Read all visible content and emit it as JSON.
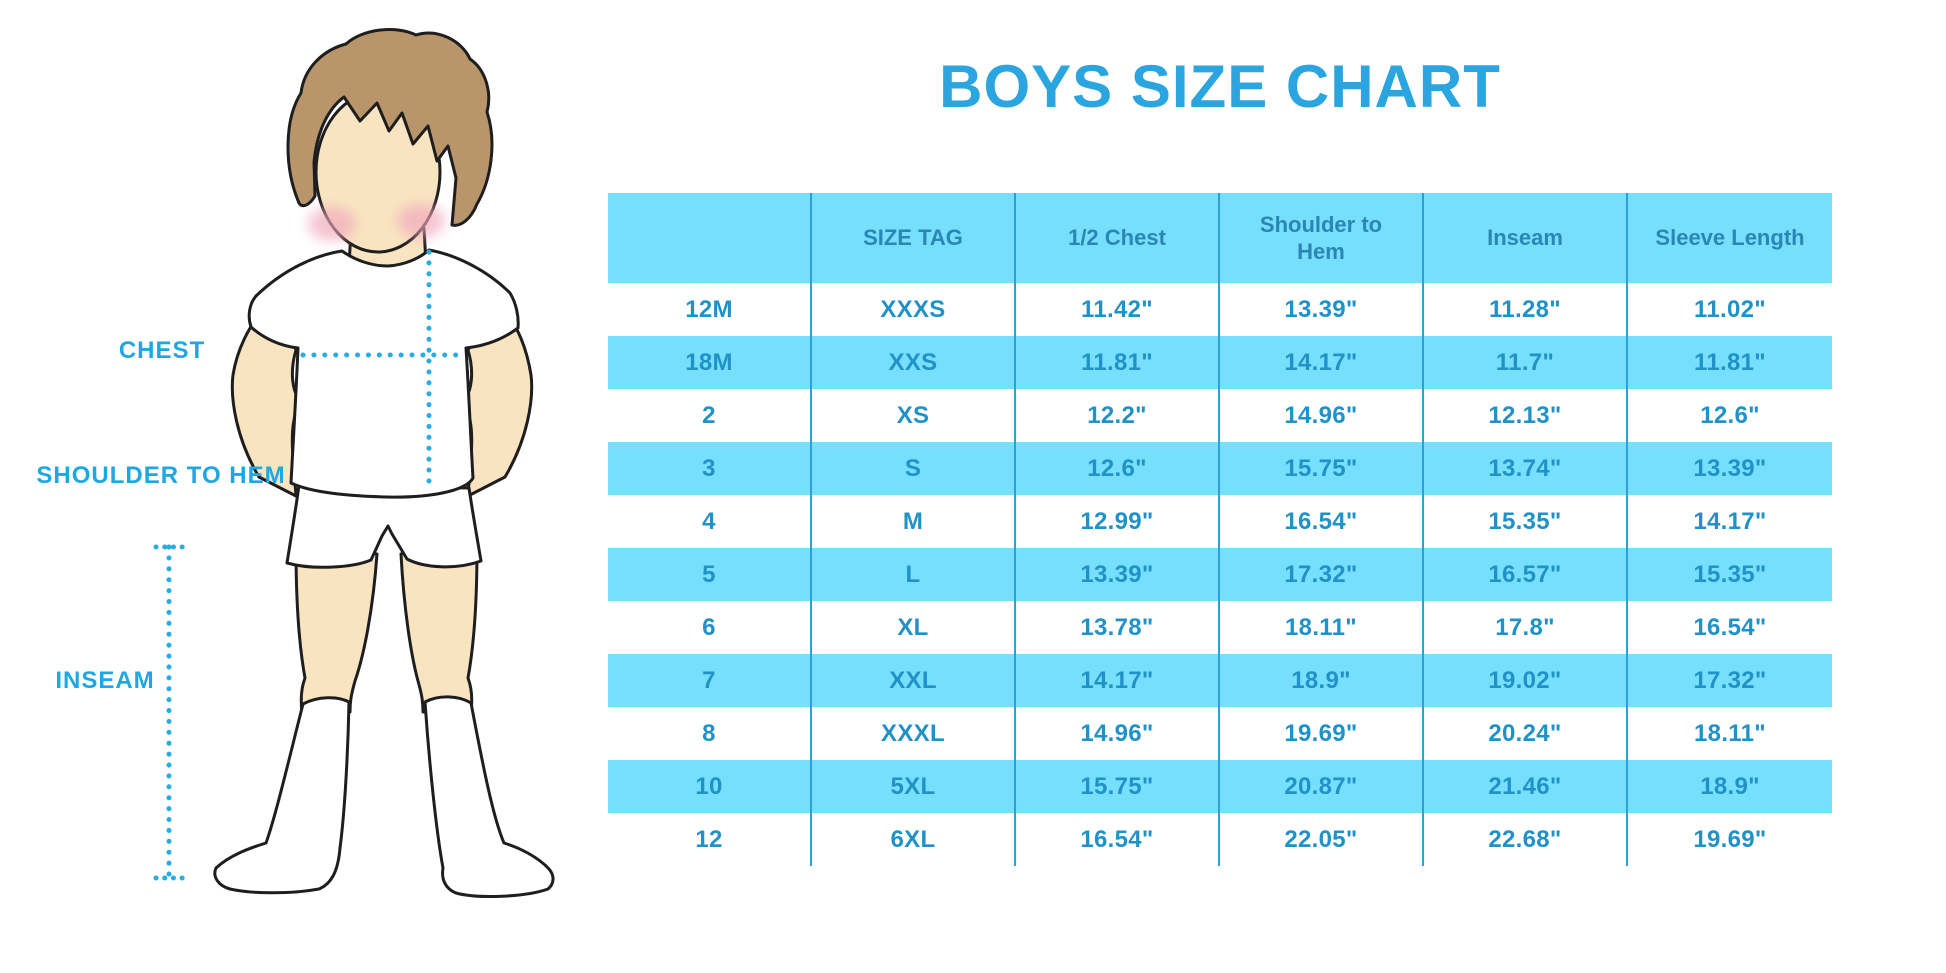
{
  "title": "BOYS SIZE CHART",
  "diagram": {
    "chest_label": "CHEST",
    "shoulder_to_hem_label": "SHOULDER TO HEM",
    "inseam_label": "INSEAM",
    "figure": "boy illustration in white t-shirt, white shorts and white knee socks with dotted measurement guides"
  },
  "colors": {
    "title_blue": "#2AA5DF",
    "label_blue": "#1FA7E2",
    "dot_blue": "#29ABE3",
    "row_blue": "#76DFFB",
    "header_text": "#2A86B6",
    "cell_text": "#2092C8",
    "separator": "#2AA2D6",
    "skin": "#F9E4C1",
    "hair": "#B8956A",
    "outline": "#1E1E1E",
    "cheek": "#F0A6BC"
  },
  "chart_data": {
    "type": "table",
    "title": "BOYS SIZE CHART",
    "columns": [
      "",
      "SIZE TAG",
      "1/2 Chest",
      "Shoulder to Hem",
      "Inseam",
      "Sleeve Length"
    ],
    "rows": [
      [
        "12M",
        "XXXS",
        "11.42\"",
        "13.39\"",
        "11.28\"",
        "11.02\""
      ],
      [
        "18M",
        "XXS",
        "11.81\"",
        "14.17\"",
        "11.7\"",
        "11.81\""
      ],
      [
        "2",
        "XS",
        "12.2\"",
        "14.96\"",
        "12.13\"",
        "12.6\""
      ],
      [
        "3",
        "S",
        "12.6\"",
        "15.75\"",
        "13.74\"",
        "13.39\""
      ],
      [
        "4",
        "M",
        "12.99\"",
        "16.54\"",
        "15.35\"",
        "14.17\""
      ],
      [
        "5",
        "L",
        "13.39\"",
        "17.32\"",
        "16.57\"",
        "15.35\""
      ],
      [
        "6",
        "XL",
        "13.78\"",
        "18.11\"",
        "17.8\"",
        "16.54\""
      ],
      [
        "7",
        "XXL",
        "14.17\"",
        "18.9\"",
        "19.02\"",
        "17.32\""
      ],
      [
        "8",
        "XXXL",
        "14.96\"",
        "19.69\"",
        "20.24\"",
        "18.11\""
      ],
      [
        "10",
        "5XL",
        "15.75\"",
        "20.87\"",
        "21.46\"",
        "18.9\""
      ],
      [
        "12",
        "6XL",
        "16.54\"",
        "22.05\"",
        "22.68\"",
        "19.69\""
      ]
    ],
    "units": "inches",
    "row_striping": "alternating white / light blue, starting white"
  }
}
